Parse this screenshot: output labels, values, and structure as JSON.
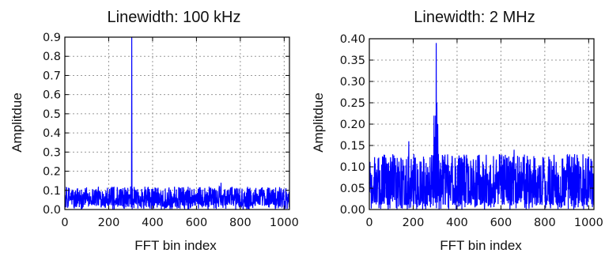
{
  "chart_data": [
    {
      "type": "line",
      "title": "Linewidth: 100 kHz",
      "xlabel": "FFT bin index",
      "ylabel": "Amplitdue",
      "xlim": [
        0,
        1024
      ],
      "ylim": [
        0.0,
        0.9
      ],
      "xticks": [
        "0",
        "200",
        "400",
        "600",
        "800",
        "1000"
      ],
      "yticks": [
        "0.0",
        "0.1",
        "0.2",
        "0.3",
        "0.4",
        "0.5",
        "0.6",
        "0.7",
        "0.8",
        "0.9"
      ],
      "grid": true,
      "color": "#0000ff",
      "series": [
        {
          "noise_floor": 0.02,
          "noise_range": [
            0.0,
            0.12
          ],
          "peaks": [
            {
              "x": 305,
              "y": 0.9
            },
            {
              "x": 300,
              "y": 0.12
            },
            {
              "x": 308,
              "y": 0.11
            },
            {
              "x": 712,
              "y": 0.14
            }
          ]
        }
      ]
    },
    {
      "type": "line",
      "title": "Linewidth: 2 MHz",
      "xlabel": "FFT bin index",
      "ylabel": "Amplitdue",
      "xlim": [
        0,
        1024
      ],
      "ylim": [
        0.0,
        0.4
      ],
      "xticks": [
        "0",
        "200",
        "400",
        "600",
        "800",
        "1000"
      ],
      "yticks": [
        "0.00",
        "0.05",
        "0.10",
        "0.15",
        "0.20",
        "0.25",
        "0.30",
        "0.35",
        "0.40"
      ],
      "grid": true,
      "color": "#0000ff",
      "series": [
        {
          "noise_floor": 0.01,
          "noise_range": [
            0.0,
            0.13
          ],
          "peaks": [
            {
              "x": 180,
              "y": 0.16
            },
            {
              "x": 295,
              "y": 0.22
            },
            {
              "x": 298,
              "y": 0.17
            },
            {
              "x": 302,
              "y": 0.22
            },
            {
              "x": 305,
              "y": 0.39
            },
            {
              "x": 308,
              "y": 0.25
            },
            {
              "x": 312,
              "y": 0.2
            },
            {
              "x": 315,
              "y": 0.13
            },
            {
              "x": 660,
              "y": 0.14
            }
          ]
        }
      ]
    }
  ]
}
